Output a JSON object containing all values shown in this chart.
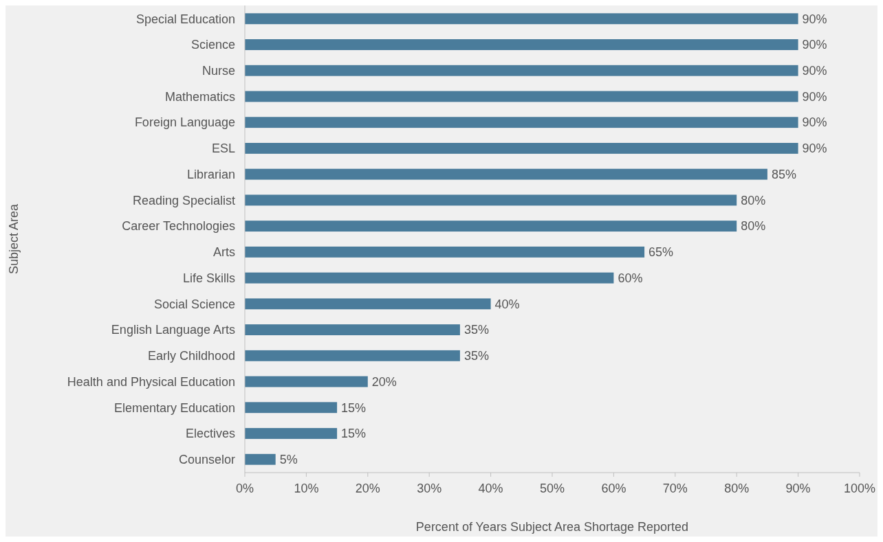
{
  "chart_data": {
    "type": "bar",
    "orientation": "horizontal",
    "xlabel": "Percent of Years Subject Area Shortage Reported",
    "ylabel": "Subject Area",
    "categories": [
      "Special Education",
      "Science",
      "Nurse",
      "Mathematics",
      "Foreign Language",
      "ESL",
      "Librarian",
      "Reading Specialist",
      "Career Technologies",
      "Arts",
      "Life Skills",
      "Social Science",
      "English Language Arts",
      "Early Childhood",
      "Health and Physical Education",
      "Elementary Education",
      "Electives",
      "Counselor"
    ],
    "values": [
      90,
      90,
      90,
      90,
      90,
      90,
      85,
      80,
      80,
      65,
      60,
      40,
      35,
      35,
      20,
      15,
      15,
      5
    ],
    "value_labels": [
      "90%",
      "90%",
      "90%",
      "90%",
      "90%",
      "90%",
      "85%",
      "80%",
      "80%",
      "65%",
      "60%",
      "40%",
      "35%",
      "35%",
      "20%",
      "15%",
      "15%",
      "5%"
    ],
    "color": "#4a7c9b",
    "xlim": [
      0,
      100
    ],
    "xticks": [
      {
        "value": 0,
        "label": "0%"
      },
      {
        "value": 10,
        "label": "10%"
      },
      {
        "value": 20,
        "label": "20%"
      },
      {
        "value": 30,
        "label": "30%"
      },
      {
        "value": 40,
        "label": "40%"
      },
      {
        "value": 50,
        "label": "50%"
      },
      {
        "value": 60,
        "label": "60%"
      },
      {
        "value": 70,
        "label": "70%"
      },
      {
        "value": 80,
        "label": "80%"
      },
      {
        "value": 90,
        "label": "90%"
      },
      {
        "value": 100,
        "label": "100%"
      }
    ],
    "grid": false
  }
}
